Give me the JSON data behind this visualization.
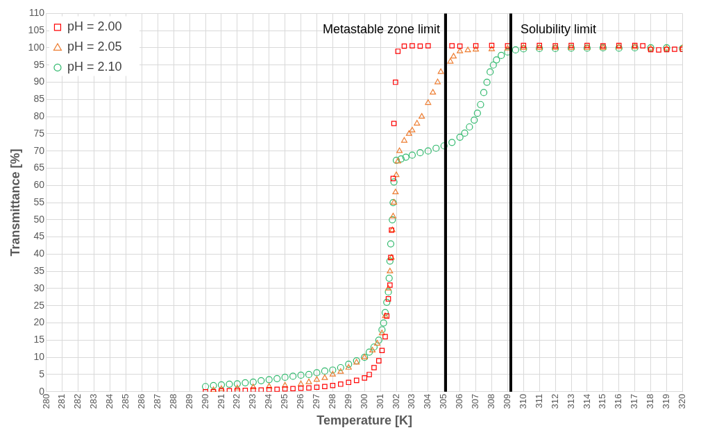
{
  "chart_data": {
    "type": "scatter",
    "xlabel": "Temperature [K]",
    "ylabel": "Transmittance [%]",
    "xlim": [
      280,
      320
    ],
    "xticks": [
      280,
      281,
      282,
      283,
      284,
      285,
      286,
      287,
      288,
      289,
      290,
      291,
      292,
      293,
      294,
      295,
      296,
      297,
      298,
      299,
      300,
      301,
      302,
      303,
      304,
      305,
      306,
      307,
      308,
      309,
      310,
      311,
      312,
      313,
      314,
      315,
      316,
      317,
      318,
      319,
      320
    ],
    "ylim": [
      0,
      110
    ],
    "yticks": [
      0,
      5,
      10,
      15,
      20,
      25,
      30,
      35,
      40,
      45,
      50,
      55,
      60,
      65,
      70,
      75,
      80,
      85,
      90,
      95,
      100,
      105,
      110
    ],
    "grid": true,
    "legend": "top left",
    "series": [
      {
        "name": "pH = 2.00",
        "color": "#ff0000",
        "marker": "square",
        "x": [
          290,
          290.5,
          291,
          291.5,
          292,
          292.5,
          293,
          293.5,
          294,
          294.5,
          295,
          295.5,
          296,
          296.5,
          297,
          297.5,
          298,
          298.5,
          299,
          299.5,
          300,
          300.3,
          300.6,
          300.9,
          301.1,
          301.3,
          301.4,
          301.5,
          301.6,
          301.65,
          301.7,
          301.8,
          301.85,
          301.95,
          302.1,
          302.5,
          303,
          303.5,
          304,
          305.5,
          306,
          307,
          308,
          309,
          310,
          311,
          312,
          313,
          314,
          315,
          316,
          317,
          317.5,
          318,
          318.5,
          319,
          319.5,
          320
        ],
        "values": [
          0,
          0,
          0.3,
          0.3,
          0.4,
          0.4,
          0.5,
          0.5,
          0.6,
          0.7,
          0.8,
          0.9,
          1,
          1.1,
          1.3,
          1.5,
          1.8,
          2.2,
          2.7,
          3.3,
          4,
          5,
          7,
          9,
          12,
          16,
          22,
          27,
          31,
          39,
          47,
          62,
          78,
          90,
          99,
          100.5,
          100.6,
          100.5,
          100.6,
          100.6,
          100.5,
          100.6,
          100.7,
          100.6,
          100.7,
          100.7,
          100.6,
          100.7,
          100.7,
          100.6,
          100.7,
          100.7,
          100.6,
          99.5,
          99.4,
          99.5,
          99.6,
          99.6
        ]
      },
      {
        "name": "pH = 2.05",
        "color": "#ed7d31",
        "marker": "triangle",
        "x": [
          290.5,
          291,
          292,
          293,
          294,
          295,
          296,
          296.5,
          297,
          297.5,
          298,
          298.5,
          299,
          299.5,
          300,
          300.5,
          300.8,
          301.1,
          301.3,
          301.5,
          301.6,
          301.7,
          301.75,
          301.8,
          301.85,
          301.95,
          302,
          302.1,
          302.2,
          302.5,
          302.8,
          303,
          303.3,
          303.6,
          304,
          304.3,
          304.6,
          304.8,
          305.4,
          305.6,
          306,
          306.5,
          307,
          308,
          309,
          310,
          311,
          312,
          313,
          314,
          315,
          316,
          317,
          318,
          319,
          320
        ],
        "values": [
          0.5,
          0.8,
          1,
          1.3,
          1.5,
          1.8,
          2.2,
          2.8,
          3.5,
          4,
          5,
          5.8,
          7,
          8.5,
          10,
          12,
          14,
          17,
          22,
          30,
          35,
          39,
          47,
          51,
          55,
          58,
          63,
          67,
          70,
          73,
          75,
          76,
          78,
          80,
          84,
          87,
          90,
          93,
          96,
          97.5,
          99,
          99.3,
          99.5,
          99.6,
          99.8,
          100,
          100,
          100,
          100,
          100,
          100,
          100.2,
          100.2,
          99.8,
          99.8,
          100
        ]
      },
      {
        "name": "pH = 2.10",
        "color": "#2eb86b",
        "marker": "circle",
        "x": [
          290,
          290.5,
          291,
          291.5,
          292,
          292.5,
          293,
          293.5,
          294,
          294.5,
          295,
          295.5,
          296,
          296.5,
          297,
          297.5,
          298,
          298.5,
          299,
          299.5,
          300,
          300.3,
          300.6,
          300.9,
          301.1,
          301.2,
          301.3,
          301.4,
          301.5,
          301.55,
          301.6,
          301.65,
          301.75,
          301.8,
          301.85,
          302,
          302.3,
          302.6,
          303,
          303.5,
          304,
          304.5,
          305,
          305.5,
          306,
          306.3,
          306.6,
          306.9,
          307.1,
          307.3,
          307.5,
          307.7,
          307.9,
          308.1,
          308.3,
          308.6,
          309,
          309.5,
          310,
          311,
          312,
          313,
          314,
          315,
          316,
          317,
          318,
          319,
          320
        ],
        "values": [
          1.5,
          1.8,
          2,
          2.2,
          2.3,
          2.6,
          2.8,
          3.2,
          3.5,
          3.8,
          4.2,
          4.5,
          4.8,
          5,
          5.5,
          6,
          6.3,
          7,
          8,
          9,
          10,
          11.5,
          13,
          15,
          18,
          20,
          23,
          26,
          29,
          33,
          38,
          43,
          50,
          55,
          61,
          67.3,
          67.7,
          68.2,
          68.8,
          69.5,
          70,
          70.8,
          71.5,
          72.5,
          74,
          75.2,
          77,
          79,
          81,
          83.5,
          87,
          90,
          93,
          95,
          96.5,
          97.8,
          98.8,
          99.4,
          99.7,
          99.8,
          99.8,
          99.9,
          99.9,
          100,
          99.9,
          100,
          100,
          100,
          99.8
        ]
      }
    ],
    "ref_lines": [
      {
        "axis": "x",
        "value": 305.1,
        "label": "Metastable zone limit",
        "color": "#000000"
      },
      {
        "axis": "x",
        "value": 309.2,
        "label": "Solubility limit",
        "color": "#000000"
      }
    ]
  }
}
